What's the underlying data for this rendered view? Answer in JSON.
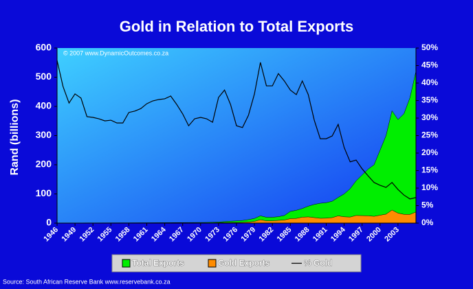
{
  "chart_data": {
    "type": "area",
    "title": "Gold in Relation to Total Exports",
    "y_label": "Rand (billions)",
    "annotation": "© 2007 www.DynamicOutcomes.co.za",
    "source": "Source:  South African Reserve Bank   www.reservebank.co.za",
    "x": [
      1946,
      1947,
      1948,
      1949,
      1950,
      1951,
      1952,
      1953,
      1954,
      1955,
      1956,
      1957,
      1958,
      1959,
      1960,
      1961,
      1962,
      1963,
      1964,
      1965,
      1966,
      1967,
      1968,
      1969,
      1970,
      1971,
      1972,
      1973,
      1974,
      1975,
      1976,
      1977,
      1978,
      1979,
      1980,
      1981,
      1982,
      1983,
      1984,
      1985,
      1986,
      1987,
      1988,
      1989,
      1990,
      1991,
      1992,
      1993,
      1994,
      1995,
      1996,
      1997,
      1998,
      1999,
      2000,
      2001,
      2002,
      2003,
      2004,
      2005,
      2006
    ],
    "xlim": [
      1946,
      2006
    ],
    "xticks": [
      1946,
      1949,
      1952,
      1955,
      1958,
      1961,
      1964,
      1967,
      1970,
      1973,
      1976,
      1979,
      1982,
      1985,
      1988,
      1991,
      1994,
      1997,
      2000,
      2003
    ],
    "ylim": [
      0,
      600
    ],
    "yticks": [
      0,
      100,
      200,
      300,
      400,
      500,
      600
    ],
    "y2lim": [
      0,
      50
    ],
    "y2ticks": [
      {
        "value": 0,
        "label": "0%"
      },
      {
        "value": 5,
        "label": "5%"
      },
      {
        "value": 10,
        "label": "10%"
      },
      {
        "value": 15,
        "label": "15%"
      },
      {
        "value": 20,
        "label": "20%"
      },
      {
        "value": 25,
        "label": "25%"
      },
      {
        "value": 30,
        "label": "30%"
      },
      {
        "value": 35,
        "label": "35%"
      },
      {
        "value": 40,
        "label": "40%"
      },
      {
        "value": 45,
        "label": "45%"
      },
      {
        "value": 50,
        "label": "50%"
      }
    ],
    "series": [
      {
        "name": "Total Exports",
        "color": "#00ee00",
        "kind": "area",
        "values": [
          0.3,
          0.35,
          0.4,
          0.45,
          0.55,
          0.7,
          0.7,
          0.75,
          0.8,
          0.9,
          0.95,
          1.0,
          1.0,
          1.1,
          1.2,
          1.25,
          1.3,
          1.4,
          1.5,
          1.6,
          1.7,
          1.8,
          1.9,
          2.0,
          2.1,
          2.3,
          2.8,
          3.8,
          5.2,
          6.5,
          7.5,
          9,
          12,
          16,
          25,
          20,
          20,
          22,
          26,
          40,
          44,
          50,
          58,
          64,
          68,
          70,
          75,
          88,
          100,
          118,
          145,
          165,
          185,
          200,
          250,
          300,
          385,
          355,
          375,
          430,
          520
        ]
      },
      {
        "name": "Gold Exports",
        "color": "#ff8c00",
        "kind": "area",
        "values": [
          0.14,
          0.14,
          0.14,
          0.17,
          0.2,
          0.21,
          0.21,
          0.22,
          0.23,
          0.26,
          0.27,
          0.29,
          0.32,
          0.35,
          0.39,
          0.43,
          0.45,
          0.49,
          0.53,
          0.58,
          0.58,
          0.56,
          0.53,
          0.6,
          0.63,
          0.69,
          0.81,
          1.4,
          2,
          2.2,
          2.1,
          2.5,
          3.7,
          5.9,
          11.5,
          7.8,
          7.8,
          9.4,
          10.6,
          15.2,
          16.1,
          20.3,
          21.3,
          18.8,
          16.4,
          16.9,
          18.7,
          24.8,
          21.6,
          20.7,
          26.1,
          25.6,
          25,
          23.2,
          27,
          30.6,
          44.7,
          34.1,
          30,
          29.7,
          38
        ]
      },
      {
        "name": "% Gold",
        "color": "#000000",
        "kind": "line",
        "axis": "y2",
        "values": [
          46.5,
          39,
          34.3,
          36.9,
          35.7,
          30.4,
          30.2,
          29.8,
          29.2,
          29.4,
          28.6,
          28.6,
          31.6,
          32,
          32.7,
          34.1,
          34.9,
          35.3,
          35.5,
          36.3,
          33.9,
          31.2,
          27.8,
          29.8,
          30.2,
          29.8,
          28.8,
          35.9,
          38,
          33.9,
          27.8,
          27.3,
          30.8,
          36.9,
          45.9,
          39.2,
          39.2,
          42.7,
          40.6,
          38,
          36.7,
          40.6,
          36.7,
          29.4,
          24.1,
          24.1,
          24.9,
          28.2,
          21.6,
          17.5,
          18,
          15.5,
          13.5,
          11.6,
          10.8,
          10.2,
          11.6,
          9.6,
          8,
          6.9,
          7.3
        ]
      }
    ]
  }
}
